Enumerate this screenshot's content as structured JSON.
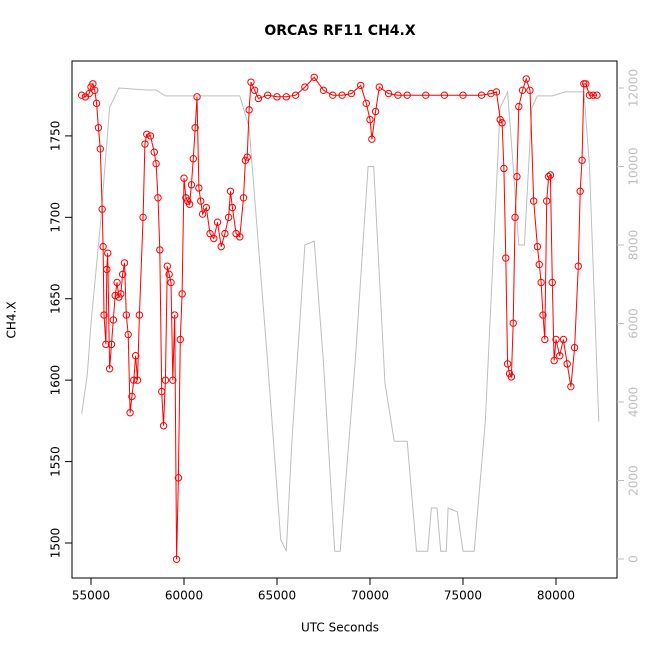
{
  "chart_data": {
    "type": "line",
    "title": "ORCAS RF11 CH4.X",
    "xlabel": "UTC Seconds",
    "ylabel": "CH4.X",
    "xlim": [
      53978,
      83280
    ],
    "xticks": [
      55000,
      60000,
      65000,
      70000,
      75000,
      80000
    ],
    "ylim": [
      1478.5,
      1796
    ],
    "yticks": [
      1500,
      1550,
      1600,
      1650,
      1700,
      1750
    ],
    "y2lim": [
      -484,
      12688
    ],
    "y2ticks": [
      0,
      2000,
      4000,
      6000,
      8000,
      10000,
      12000
    ],
    "series": [
      {
        "color": "#ff0000",
        "marker": "circle",
        "x": [
          54500,
          54700,
          54900,
          55000,
          55100,
          55200,
          55300,
          55400,
          55500,
          55600,
          55650,
          55700,
          55800,
          55850,
          55900,
          56000,
          56100,
          56200,
          56300,
          56400,
          56500,
          56600,
          56700,
          56800,
          56900,
          57000,
          57100,
          57200,
          57300,
          57400,
          57500,
          57600,
          57800,
          57900,
          58000,
          58200,
          58400,
          58500,
          58600,
          58700,
          58800,
          58900,
          59000,
          59100,
          59200,
          59300,
          59400,
          59500,
          59600,
          59700,
          59800,
          59900,
          60000,
          60100,
          60200,
          60300,
          60400,
          60500,
          60600,
          60700,
          60800,
          60900,
          61000,
          61200,
          61400,
          61600,
          61800,
          62000,
          62200,
          62400,
          62500,
          62600,
          62800,
          63000,
          63200,
          63300,
          63400,
          63500,
          63600,
          63800,
          64000,
          64500,
          65000,
          65500,
          66000,
          66500,
          67000,
          67500,
          68000,
          68500,
          69000,
          69500,
          69800,
          70000,
          70100,
          70300,
          70500,
          71000,
          71500,
          72000,
          73000,
          74000,
          75000,
          76000,
          76500,
          76800,
          77000,
          77100,
          77200,
          77300,
          77400,
          77500,
          77600,
          77700,
          77800,
          77900,
          78000,
          78200,
          78400,
          78600,
          78800,
          79000,
          79100,
          79200,
          79300,
          79400,
          79500,
          79600,
          79700,
          79800,
          79900,
          80000,
          80200,
          80400,
          80600,
          80800,
          81000,
          81200,
          81300,
          81400,
          81500,
          81600,
          81800,
          82000,
          82200
        ],
        "values": [
          1775,
          1774,
          1776,
          1780,
          1782,
          1778,
          1770,
          1755,
          1742,
          1705,
          1682,
          1640,
          1622,
          1668,
          1678,
          1607,
          1622,
          1637,
          1652,
          1660,
          1651,
          1653,
          1665,
          1672,
          1640,
          1628,
          1580,
          1590,
          1600,
          1615,
          1600,
          1640,
          1700,
          1745,
          1751,
          1750,
          1740,
          1733,
          1712,
          1680,
          1593,
          1572,
          1600,
          1670,
          1665,
          1660,
          1600,
          1640,
          1490,
          1540,
          1625,
          1653,
          1724,
          1712,
          1710,
          1708,
          1720,
          1736,
          1755,
          1774,
          1718,
          1710,
          1702,
          1706,
          1690,
          1687,
          1697,
          1682,
          1690,
          1700,
          1716,
          1706,
          1690,
          1688,
          1712,
          1735,
          1737,
          1766,
          1783,
          1778,
          1773,
          1775,
          1774,
          1774,
          1775,
          1780,
          1786,
          1778,
          1775,
          1775,
          1776,
          1781,
          1770,
          1760,
          1748,
          1765,
          1780,
          1776,
          1775,
          1775,
          1775,
          1775,
          1775,
          1775,
          1776,
          1777,
          1760,
          1758,
          1730,
          1675,
          1610,
          1604,
          1602,
          1635,
          1700,
          1725,
          1768,
          1778,
          1785,
          1778,
          1710,
          1682,
          1671,
          1660,
          1640,
          1625,
          1710,
          1725,
          1726,
          1660,
          1612,
          1625,
          1615,
          1625,
          1610,
          1596,
          1620,
          1670,
          1716,
          1735,
          1782,
          1782,
          1775,
          1775,
          1775
        ]
      },
      {
        "color": "#bebebe",
        "axis": "y2",
        "x": [
          54500,
          54800,
          55000,
          55500,
          56000,
          56500,
          58000,
          58500,
          59000,
          63000,
          63500,
          64500,
          65200,
          65500,
          65800,
          66500,
          67000,
          67500,
          68100,
          68400,
          69200,
          69900,
          70200,
          70800,
          71300,
          72000,
          72500,
          73100,
          73300,
          73600,
          73800,
          74100,
          74200,
          74700,
          75000,
          75600,
          76200,
          76700,
          77000,
          77400,
          77700,
          78000,
          78300,
          78700,
          79000,
          79800,
          80500,
          81500,
          81800,
          82300
        ],
        "values": [
          3700,
          4700,
          6000,
          8500,
          11500,
          12000,
          11950,
          11950,
          11800,
          11800,
          11000,
          5000,
          500,
          200,
          3000,
          8000,
          8100,
          5000,
          200,
          200,
          5000,
          10000,
          10000,
          4500,
          3000,
          3000,
          200,
          200,
          1300,
          1300,
          200,
          200,
          1300,
          1200,
          200,
          200,
          3500,
          8500,
          11500,
          11900,
          10000,
          8000,
          8000,
          11500,
          11800,
          11800,
          11900,
          11900,
          10000,
          3500
        ]
      }
    ]
  }
}
